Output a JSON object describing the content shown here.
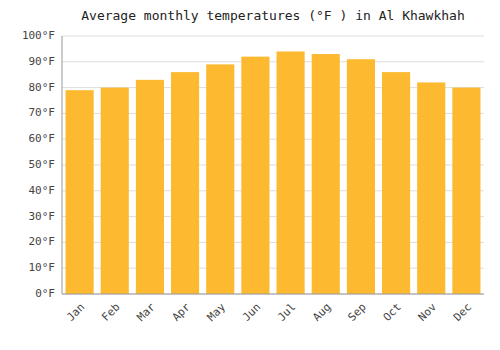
{
  "chart_data": {
    "type": "bar",
    "title": "Average monthly temperatures (°F ) in Al Khawkhah",
    "categories": [
      "Jan",
      "Feb",
      "Mar",
      "Apr",
      "May",
      "Jun",
      "Jul",
      "Aug",
      "Sep",
      "Oct",
      "Nov",
      "Dec"
    ],
    "values": [
      79,
      80,
      83,
      86,
      89,
      92,
      94,
      93,
      91,
      86,
      82,
      80
    ],
    "color": "#FDB930",
    "ylim": [
      0,
      100
    ],
    "yticks": [
      {
        "value": 0,
        "label": "0°F"
      },
      {
        "value": 10,
        "label": "10°F"
      },
      {
        "value": 20,
        "label": "20°F"
      },
      {
        "value": 30,
        "label": "30°F"
      },
      {
        "value": 40,
        "label": "40°F"
      },
      {
        "value": 50,
        "label": "50°F"
      },
      {
        "value": 60,
        "label": "60°F"
      },
      {
        "value": 70,
        "label": "70°F"
      },
      {
        "value": 80,
        "label": "80°F"
      },
      {
        "value": 90,
        "label": "90°F"
      },
      {
        "value": 100,
        "label": "100°F"
      }
    ],
    "grid": true
  }
}
